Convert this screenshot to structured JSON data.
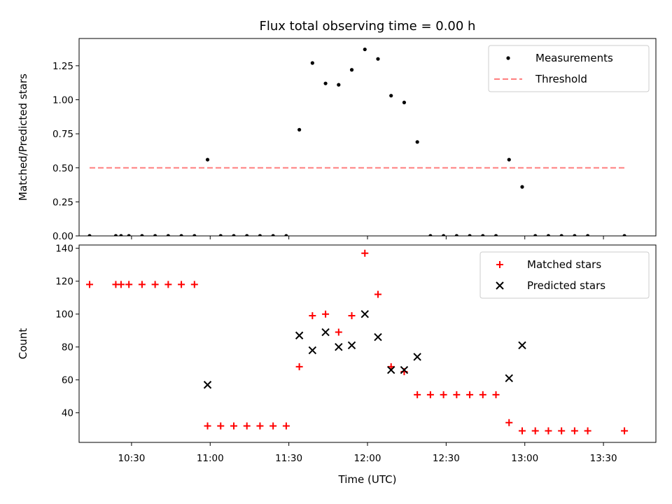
{
  "figure": {
    "title": "Flux total observing time = 0.00 h"
  },
  "chart_data": [
    {
      "type": "scatter",
      "ylabel": "Matched/Predicted stars",
      "xlabel": "",
      "xlim": [
        "10:10",
        "13:50"
      ],
      "ylim": [
        0,
        1.45
      ],
      "yticks": [
        "0.00",
        "0.25",
        "0.50",
        "0.75",
        "1.00",
        "1.25"
      ],
      "ytick_values": [
        0,
        0.25,
        0.5,
        0.75,
        1.0,
        1.25
      ],
      "legend_position": "top-right",
      "series": [
        {
          "name": "Measurements",
          "color": "#000000",
          "marker": "dot",
          "points": [
            [
              "10:14",
              0
            ],
            [
              "10:24",
              0
            ],
            [
              "10:26",
              0
            ],
            [
              "10:29",
              0
            ],
            [
              "10:34",
              0
            ],
            [
              "10:39",
              0
            ],
            [
              "10:44",
              0
            ],
            [
              "10:49",
              0
            ],
            [
              "10:54",
              0
            ],
            [
              "10:59",
              0.56
            ],
            [
              "11:04",
              0
            ],
            [
              "11:09",
              0
            ],
            [
              "11:14",
              0
            ],
            [
              "11:19",
              0
            ],
            [
              "11:24",
              0
            ],
            [
              "11:29",
              0
            ],
            [
              "11:34",
              0.78
            ],
            [
              "11:39",
              1.27
            ],
            [
              "11:44",
              1.12
            ],
            [
              "11:49",
              1.11
            ],
            [
              "11:54",
              1.22
            ],
            [
              "11:59",
              1.37
            ],
            [
              "12:04",
              1.3
            ],
            [
              "12:09",
              1.03
            ],
            [
              "12:14",
              0.98
            ],
            [
              "12:19",
              0.69
            ],
            [
              "12:24",
              0
            ],
            [
              "12:29",
              0
            ],
            [
              "12:34",
              0
            ],
            [
              "12:39",
              0
            ],
            [
              "12:44",
              0
            ],
            [
              "12:49",
              0
            ],
            [
              "12:54",
              0.56
            ],
            [
              "12:59",
              0.36
            ],
            [
              "13:04",
              0
            ],
            [
              "13:09",
              0
            ],
            [
              "13:14",
              0
            ],
            [
              "13:19",
              0
            ],
            [
              "13:24",
              0
            ],
            [
              "13:38",
              0
            ]
          ]
        },
        {
          "name": "Threshold",
          "color": "#ff7f7f",
          "style": "dashed",
          "points": [
            [
              "10:14",
              0.5
            ],
            [
              "13:38",
              0.5
            ]
          ]
        }
      ]
    },
    {
      "type": "scatter",
      "xlabel": "Time (UTC)",
      "ylabel": "Count",
      "xlim": [
        "10:10",
        "13:50"
      ],
      "ylim": [
        22,
        142
      ],
      "yticks": [
        "40",
        "60",
        "80",
        "100",
        "120",
        "140"
      ],
      "ytick_values": [
        40,
        60,
        80,
        100,
        120,
        140
      ],
      "xticks": [
        "10:30",
        "11:00",
        "11:30",
        "12:00",
        "12:30",
        "13:00",
        "13:30"
      ],
      "legend_position": "top-right",
      "series": [
        {
          "name": "Matched stars",
          "color": "#ff0000",
          "marker": "plus",
          "points": [
            [
              "10:14",
              118
            ],
            [
              "10:24",
              118
            ],
            [
              "10:26",
              118
            ],
            [
              "10:29",
              118
            ],
            [
              "10:34",
              118
            ],
            [
              "10:39",
              118
            ],
            [
              "10:44",
              118
            ],
            [
              "10:49",
              118
            ],
            [
              "10:54",
              118
            ],
            [
              "10:59",
              32
            ],
            [
              "11:04",
              32
            ],
            [
              "11:09",
              32
            ],
            [
              "11:14",
              32
            ],
            [
              "11:19",
              32
            ],
            [
              "11:24",
              32
            ],
            [
              "11:29",
              32
            ],
            [
              "11:34",
              68
            ],
            [
              "11:39",
              99
            ],
            [
              "11:44",
              100
            ],
            [
              "11:49",
              89
            ],
            [
              "11:54",
              99
            ],
            [
              "11:59",
              137
            ],
            [
              "12:04",
              112
            ],
            [
              "12:09",
              68
            ],
            [
              "12:14",
              65
            ],
            [
              "12:19",
              51
            ],
            [
              "12:24",
              51
            ],
            [
              "12:29",
              51
            ],
            [
              "12:34",
              51
            ],
            [
              "12:39",
              51
            ],
            [
              "12:44",
              51
            ],
            [
              "12:49",
              51
            ],
            [
              "12:54",
              34
            ],
            [
              "12:59",
              29
            ],
            [
              "13:04",
              29
            ],
            [
              "13:09",
              29
            ],
            [
              "13:14",
              29
            ],
            [
              "13:19",
              29
            ],
            [
              "13:24",
              29
            ],
            [
              "13:38",
              29
            ]
          ]
        },
        {
          "name": "Predicted stars",
          "color": "#000000",
          "marker": "x",
          "points": [
            [
              "10:59",
              57
            ],
            [
              "11:34",
              87
            ],
            [
              "11:39",
              78
            ],
            [
              "11:44",
              89
            ],
            [
              "11:49",
              80
            ],
            [
              "11:54",
              81
            ],
            [
              "11:59",
              100
            ],
            [
              "12:04",
              86
            ],
            [
              "12:09",
              66
            ],
            [
              "12:14",
              66
            ],
            [
              "12:19",
              74
            ],
            [
              "12:54",
              61
            ],
            [
              "12:59",
              81
            ]
          ]
        }
      ]
    }
  ]
}
